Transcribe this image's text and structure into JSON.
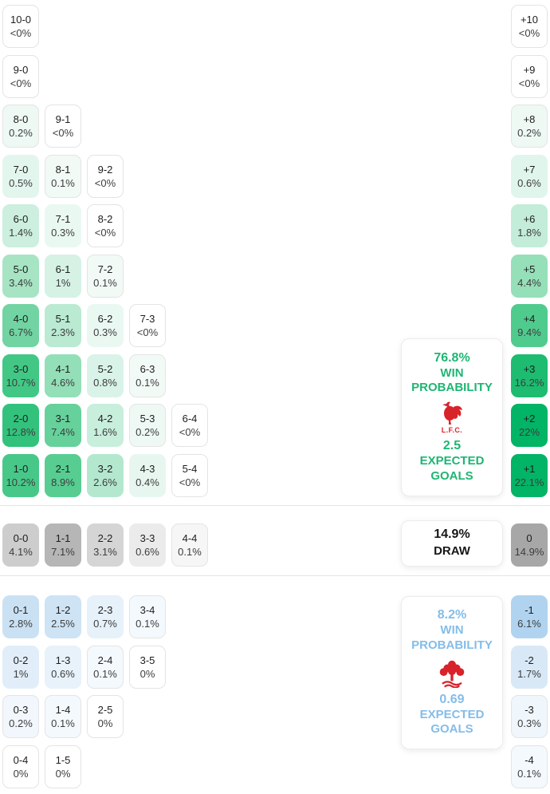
{
  "chart_data": {
    "type": "heatmap",
    "home": {
      "team_short": "L.F.C.",
      "crest_icon": "liverpool-crest",
      "win_probability": "76.8%",
      "expected_goals": "2.5",
      "score_rows": [
        [
          {
            "v": "10-0",
            "p": "<0%",
            "bg": "#ffffff"
          }
        ],
        [
          {
            "v": "9-0",
            "p": "<0%",
            "bg": "#ffffff"
          }
        ],
        [
          {
            "v": "8-0",
            "p": "0.2%",
            "bg": "#eef9f4"
          },
          {
            "v": "9-1",
            "p": "<0%",
            "bg": "#ffffff"
          }
        ],
        [
          {
            "v": "7-0",
            "p": "0.5%",
            "bg": "#e3f6ee"
          },
          {
            "v": "8-1",
            "p": "0.1%",
            "bg": "#f2faf6"
          },
          {
            "v": "9-2",
            "p": "<0%",
            "bg": "#ffffff"
          }
        ],
        [
          {
            "v": "6-0",
            "p": "1.4%",
            "bg": "#ccefdf"
          },
          {
            "v": "7-1",
            "p": "0.3%",
            "bg": "#eaf8f2"
          },
          {
            "v": "8-2",
            "p": "<0%",
            "bg": "#ffffff"
          }
        ],
        [
          {
            "v": "5-0",
            "p": "3.4%",
            "bg": "#a6e4c4"
          },
          {
            "v": "6-1",
            "p": "1%",
            "bg": "#d5f2e5"
          },
          {
            "v": "7-2",
            "p": "0.1%",
            "bg": "#f2faf6"
          }
        ],
        [
          {
            "v": "4-0",
            "p": "6.7%",
            "bg": "#71d4a2"
          },
          {
            "v": "5-1",
            "p": "2.3%",
            "bg": "#baead2"
          },
          {
            "v": "6-2",
            "p": "0.3%",
            "bg": "#eaf8f2"
          },
          {
            "v": "7-3",
            "p": "<0%",
            "bg": "#ffffff"
          }
        ],
        [
          {
            "v": "3-0",
            "p": "10.7%",
            "bg": "#42c785"
          },
          {
            "v": "4-1",
            "p": "4.6%",
            "bg": "#93dfb8"
          },
          {
            "v": "5-2",
            "p": "0.8%",
            "bg": "#d9f3e8"
          },
          {
            "v": "6-3",
            "p": "0.1%",
            "bg": "#f2faf6"
          }
        ],
        [
          {
            "v": "2-0",
            "p": "12.8%",
            "bg": "#32c27c"
          },
          {
            "v": "3-1",
            "p": "7.4%",
            "bg": "#66d19b"
          },
          {
            "v": "4-2",
            "p": "1.6%",
            "bg": "#c8eedc"
          },
          {
            "v": "5-3",
            "p": "0.2%",
            "bg": "#eef9f4"
          },
          {
            "v": "6-4",
            "p": "<0%",
            "bg": "#ffffff"
          }
        ],
        [
          {
            "v": "1-0",
            "p": "10.2%",
            "bg": "#47c888"
          },
          {
            "v": "2-1",
            "p": "8.9%",
            "bg": "#57cd92"
          },
          {
            "v": "3-2",
            "p": "2.6%",
            "bg": "#b4e8ce"
          },
          {
            "v": "4-3",
            "p": "0.4%",
            "bg": "#e7f7f0"
          },
          {
            "v": "5-4",
            "p": "<0%",
            "bg": "#ffffff"
          }
        ]
      ],
      "goal_diff": [
        {
          "v": "+10",
          "p": "<0%",
          "bg": "#ffffff"
        },
        {
          "v": "+9",
          "p": "<0%",
          "bg": "#ffffff"
        },
        {
          "v": "+8",
          "p": "0.2%",
          "bg": "#eef9f4"
        },
        {
          "v": "+7",
          "p": "0.6%",
          "bg": "#e0f5ec"
        },
        {
          "v": "+6",
          "p": "1.8%",
          "bg": "#c3ecd9"
        },
        {
          "v": "+5",
          "p": "4.4%",
          "bg": "#95dfb9"
        },
        {
          "v": "+4",
          "p": "9.4%",
          "bg": "#50cb8e"
        },
        {
          "v": "+3",
          "p": "16.2%",
          "bg": "#1dbc70"
        },
        {
          "v": "+2",
          "p": "22%",
          "bg": "#02b465"
        },
        {
          "v": "+1",
          "p": "22.1%",
          "bg": "#02b465"
        }
      ]
    },
    "draw": {
      "probability": "14.9%",
      "scores": [
        {
          "v": "0-0",
          "p": "4.1%",
          "bg": "#cdcdcd"
        },
        {
          "v": "1-1",
          "p": "7.1%",
          "bg": "#b6b6b6"
        },
        {
          "v": "2-2",
          "p": "3.1%",
          "bg": "#d5d5d5"
        },
        {
          "v": "3-3",
          "p": "0.6%",
          "bg": "#ebebeb"
        },
        {
          "v": "4-4",
          "p": "0.1%",
          "bg": "#f6f6f6"
        }
      ],
      "goal_diff": {
        "v": "0",
        "p": "14.9%",
        "bg": "#a7a7a7"
      }
    },
    "away": {
      "crest_icon": "nottingham-forest-crest",
      "win_probability": "8.2%",
      "expected_goals": "0.69",
      "score_rows": [
        [
          {
            "v": "0-1",
            "p": "2.8%",
            "bg": "#cae1f4"
          },
          {
            "v": "1-2",
            "p": "2.5%",
            "bg": "#cee3f4"
          },
          {
            "v": "2-3",
            "p": "0.7%",
            "bg": "#e6f1fa"
          },
          {
            "v": "3-4",
            "p": "0.1%",
            "bg": "#f4f9fd"
          }
        ],
        [
          {
            "v": "0-2",
            "p": "1%",
            "bg": "#e1eef9"
          },
          {
            "v": "1-3",
            "p": "0.6%",
            "bg": "#e8f2fa"
          },
          {
            "v": "2-4",
            "p": "0.1%",
            "bg": "#f4f9fd"
          },
          {
            "v": "3-5",
            "p": "0%",
            "bg": "#ffffff"
          }
        ],
        [
          {
            "v": "0-3",
            "p": "0.2%",
            "bg": "#f1f7fc"
          },
          {
            "v": "1-4",
            "p": "0.1%",
            "bg": "#f4f9fd"
          },
          {
            "v": "2-5",
            "p": "0%",
            "bg": "#ffffff"
          }
        ],
        [
          {
            "v": "0-4",
            "p": "0%",
            "bg": "#ffffff"
          },
          {
            "v": "1-5",
            "p": "0%",
            "bg": "#ffffff"
          }
        ]
      ],
      "goal_diff": [
        {
          "v": "-1",
          "p": "6.1%",
          "bg": "#b0d4ef"
        },
        {
          "v": "-2",
          "p": "1.7%",
          "bg": "#d8e8f6"
        },
        {
          "v": "-3",
          "p": "0.3%",
          "bg": "#eff6fc"
        },
        {
          "v": "-4",
          "p": "0.1%",
          "bg": "#f4f9fd"
        }
      ]
    }
  },
  "labels": {
    "win_probability": "WIN PROBABILITY",
    "expected_goals": "EXPECTED GOALS",
    "draw": "DRAW"
  },
  "theme": {
    "home_accent": "#1fb573",
    "away_accent": "#84bde8",
    "draw_text": "#161616",
    "crest_red": "#d8232a"
  }
}
